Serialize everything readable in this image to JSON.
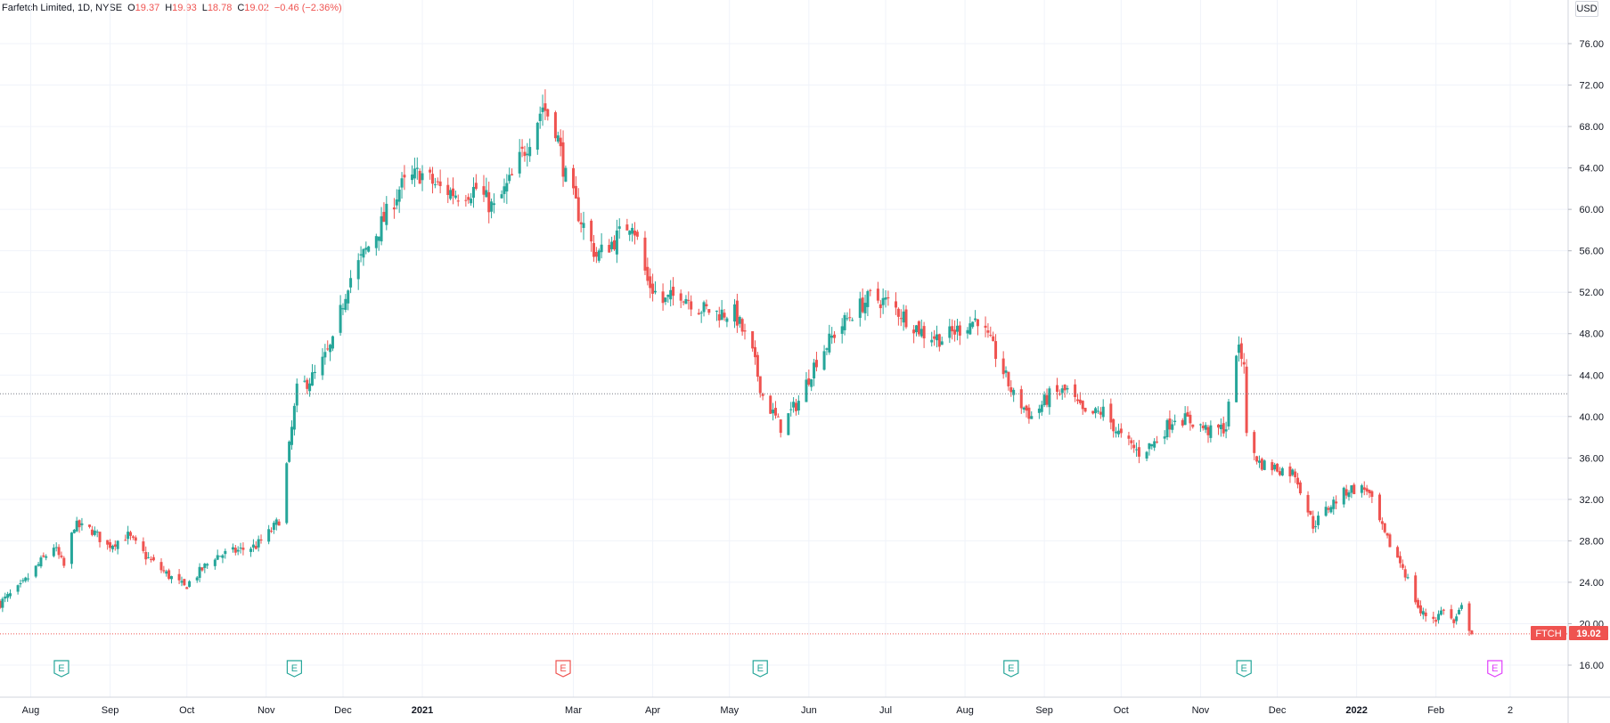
{
  "header": {
    "symbol_info": "Farfetch Limited, 1D, NYSE",
    "open_label": "O",
    "open": "19.37",
    "high_label": "H",
    "high": "19.93",
    "low_label": "L",
    "low": "18.78",
    "close_label": "C",
    "close": "19.02",
    "change": "−0.46 (−2.36%)",
    "currency": "USD"
  },
  "price_tag": {
    "ticker": "FTCH",
    "price": "19.02"
  },
  "colors": {
    "up": "#26a69a",
    "down": "#ef5350",
    "grid": "#f0f3fa",
    "earnings_future": "#e040fb"
  },
  "chart_data": {
    "type": "candlestick",
    "title": "Farfetch Limited, 1D, NYSE",
    "ylim": [
      14,
      78
    ],
    "y_ticks": [
      "76.00",
      "72.00",
      "68.00",
      "64.00",
      "60.00",
      "56.00",
      "52.00",
      "48.00",
      "44.00",
      "40.00",
      "36.00",
      "32.00",
      "28.00",
      "24.00",
      "20.00",
      "16.00"
    ],
    "x_ticks": [
      {
        "label": "Aug",
        "date": "2020-08-01",
        "year": false
      },
      {
        "label": "Sep",
        "date": "2020-09-01",
        "year": false
      },
      {
        "label": "Oct",
        "date": "2020-10-01",
        "year": false
      },
      {
        "label": "Nov",
        "date": "2020-11-01",
        "year": false
      },
      {
        "label": "Dec",
        "date": "2020-12-01",
        "year": false
      },
      {
        "label": "2021",
        "date": "2021-01-01",
        "year": true
      },
      {
        "label": "Mar",
        "date": "2021-03-01",
        "year": false
      },
      {
        "label": "Apr",
        "date": "2021-04-01",
        "year": false
      },
      {
        "label": "May",
        "date": "2021-05-01",
        "year": false
      },
      {
        "label": "Jun",
        "date": "2021-06-01",
        "year": false
      },
      {
        "label": "Jul",
        "date": "2021-07-01",
        "year": false
      },
      {
        "label": "Aug",
        "date": "2021-08-01",
        "year": false
      },
      {
        "label": "Sep",
        "date": "2021-09-01",
        "year": false
      },
      {
        "label": "Oct",
        "date": "2021-10-01",
        "year": false
      },
      {
        "label": "Nov",
        "date": "2021-11-01",
        "year": false
      },
      {
        "label": "Dec",
        "date": "2021-12-01",
        "year": false
      },
      {
        "label": "2022",
        "date": "2022-01-01",
        "year": true
      },
      {
        "label": "Feb",
        "date": "2022-02-01",
        "year": false
      },
      {
        "label": "2",
        "date": "2022-03-02",
        "year": false
      }
    ],
    "date_range": [
      "2020-07-20",
      "2022-03-02"
    ],
    "last_close": 19.02,
    "crosshair_price": 42.2,
    "price_path": [
      [
        "2020-07-20",
        22
      ],
      [
        "2020-07-28",
        23.5
      ],
      [
        "2020-08-05",
        26
      ],
      [
        "2020-08-10",
        27.5
      ],
      [
        "2020-08-14",
        25.5
      ],
      [
        "2020-08-18",
        29.5
      ],
      [
        "2020-08-25",
        29
      ],
      [
        "2020-08-31",
        27.5
      ],
      [
        "2020-09-08",
        28.5
      ],
      [
        "2020-09-15",
        26.5
      ],
      [
        "2020-09-22",
        25
      ],
      [
        "2020-09-30",
        23.5
      ],
      [
        "2020-10-06",
        25
      ],
      [
        "2020-10-12",
        26.5
      ],
      [
        "2020-10-20",
        27
      ],
      [
        "2020-10-28",
        27.5
      ],
      [
        "2020-11-03",
        29
      ],
      [
        "2020-11-06",
        30
      ],
      [
        "2020-11-10",
        37
      ],
      [
        "2020-11-13",
        42.5
      ],
      [
        "2020-11-20",
        44
      ],
      [
        "2020-11-27",
        47
      ],
      [
        "2020-12-03",
        53
      ],
      [
        "2020-12-10",
        56
      ],
      [
        "2020-12-17",
        59
      ],
      [
        "2020-12-23",
        62
      ],
      [
        "2020-12-31",
        63.5
      ],
      [
        "2021-01-08",
        62
      ],
      [
        "2021-01-15",
        61.5
      ],
      [
        "2021-01-22",
        62
      ],
      [
        "2021-01-29",
        60
      ],
      [
        "2021-02-05",
        63
      ],
      [
        "2021-02-12",
        67
      ],
      [
        "2021-02-17",
        70
      ],
      [
        "2021-02-22",
        68
      ],
      [
        "2021-02-26",
        63
      ],
      [
        "2021-03-04",
        59
      ],
      [
        "2021-03-10",
        55.5
      ],
      [
        "2021-03-17",
        57
      ],
      [
        "2021-03-24",
        59
      ],
      [
        "2021-03-30",
        53
      ],
      [
        "2021-04-05",
        51
      ],
      [
        "2021-04-12",
        52
      ],
      [
        "2021-04-19",
        50.5
      ],
      [
        "2021-04-26",
        50
      ],
      [
        "2021-05-03",
        50
      ],
      [
        "2021-05-10",
        46
      ],
      [
        "2021-05-14",
        42
      ],
      [
        "2021-05-21",
        39
      ],
      [
        "2021-05-28",
        41.5
      ],
      [
        "2021-06-04",
        45.5
      ],
      [
        "2021-06-11",
        48
      ],
      [
        "2021-06-18",
        50
      ],
      [
        "2021-06-25",
        51.5
      ],
      [
        "2021-07-02",
        51
      ],
      [
        "2021-07-09",
        49.5
      ],
      [
        "2021-07-16",
        48
      ],
      [
        "2021-07-23",
        47.5
      ],
      [
        "2021-07-30",
        48.5
      ],
      [
        "2021-08-06",
        49.5
      ],
      [
        "2021-08-13",
        46
      ],
      [
        "2021-08-20",
        42
      ],
      [
        "2021-08-27",
        40
      ],
      [
        "2021-09-03",
        42
      ],
      [
        "2021-09-10",
        42.5
      ],
      [
        "2021-09-17",
        40
      ],
      [
        "2021-09-24",
        40.5
      ],
      [
        "2021-10-01",
        38
      ],
      [
        "2021-10-08",
        36.5
      ],
      [
        "2021-10-14",
        37.5
      ],
      [
        "2021-10-22",
        40
      ],
      [
        "2021-10-29",
        39.5
      ],
      [
        "2021-11-05",
        38.5
      ],
      [
        "2021-11-11",
        39
      ],
      [
        "2021-11-15",
        46.5
      ],
      [
        "2021-11-18",
        45.5
      ],
      [
        "2021-11-19",
        38
      ],
      [
        "2021-11-24",
        35.5
      ],
      [
        "2021-12-01",
        35
      ],
      [
        "2021-12-08",
        34.5
      ],
      [
        "2021-12-15",
        29.5
      ],
      [
        "2021-12-22",
        31.5
      ],
      [
        "2021-12-29",
        33
      ],
      [
        "2022-01-05",
        33
      ],
      [
        "2022-01-12",
        28.5
      ],
      [
        "2022-01-19",
        25.5
      ],
      [
        "2022-01-26",
        21
      ],
      [
        "2022-02-01",
        20.5
      ],
      [
        "2022-02-04",
        21.5
      ],
      [
        "2022-02-08",
        20
      ],
      [
        "2022-02-11",
        21.5
      ],
      [
        "2022-02-15",
        19.02
      ]
    ],
    "earnings_events": [
      {
        "date": "2020-08-13",
        "kind": "past-beat",
        "label": "E"
      },
      {
        "date": "2020-11-12",
        "kind": "past-beat",
        "label": "E"
      },
      {
        "date": "2021-02-25",
        "kind": "past-miss",
        "label": "E"
      },
      {
        "date": "2021-05-13",
        "kind": "past-beat",
        "label": "E"
      },
      {
        "date": "2021-08-19",
        "kind": "past-beat",
        "label": "E"
      },
      {
        "date": "2021-11-18",
        "kind": "past-beat",
        "label": "E"
      },
      {
        "date": "2022-02-24",
        "kind": "upcoming",
        "label": "E"
      }
    ]
  }
}
